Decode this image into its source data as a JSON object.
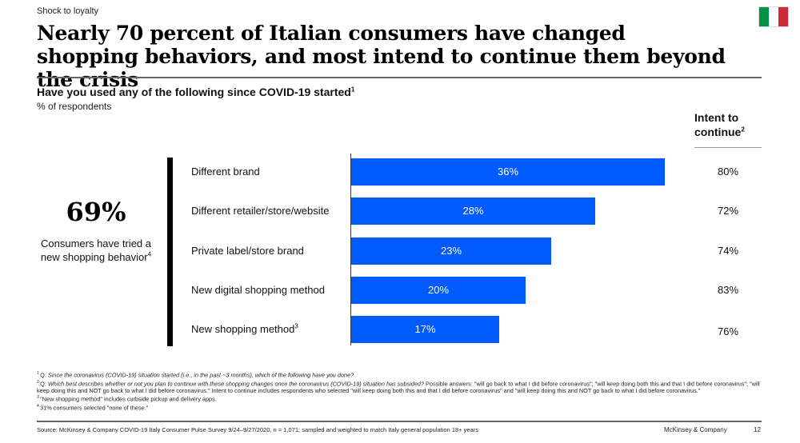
{
  "header": {
    "kicker": "Shock to loyalty",
    "title": "Nearly 70 percent of Italian consumers have changed shopping behaviors, and most intend to continue them beyond the crisis",
    "flag_icon": "italy-flag-icon",
    "flag_colors": [
      "#009246",
      "#ffffff",
      "#ce2b37"
    ]
  },
  "summary": {
    "big_number": "69%",
    "caption": "Consumers have tried a new shopping behavior",
    "caption_footnote": "4"
  },
  "intent": {
    "heading_line1": "Intent to",
    "heading_line2": "continue",
    "heading_footnote": "2"
  },
  "chart_data": {
    "type": "bar",
    "orientation": "horizontal",
    "title": "Have you used any of the following since COVID-19 started",
    "title_footnote": "1",
    "subtitle": "% of respondents",
    "categories": [
      "Different brand",
      "Different retailer/store/website",
      "Private label/store brand",
      "New digital shopping method",
      "New shopping method"
    ],
    "category_footnotes": [
      "",
      "",
      "",
      "",
      "3"
    ],
    "values": [
      36,
      28,
      23,
      20,
      17
    ],
    "value_labels": [
      "36%",
      "28%",
      "23%",
      "20%",
      "17%"
    ],
    "intent_to_continue": [
      80,
      72,
      74,
      83,
      76
    ],
    "intent_labels": [
      "80%",
      "72%",
      "74%",
      "83%",
      "76%"
    ],
    "bar_color": "#005bff",
    "xlim": [
      0,
      36
    ],
    "grid": false,
    "legend": "none"
  },
  "footnotes": [
    {
      "num": "1",
      "prefix": "Q: ",
      "italic": "Since the coronavirus (COVID-19) situation started (i.e., in the past ~3 months), which of the following have you done?",
      "text": ""
    },
    {
      "num": "2",
      "prefix": "Q: ",
      "italic": "Which best describes whether or not you plan to continue with these shopping changes once the coronavirus (COVID-19) situation has subsided?",
      "text": " Possible answers: \"will go back to what I did before coronavirus\"; \"will keep doing both this and that I did before coronavirus\"; \"will keep doing this and NOT go back to what I did before coronavirus.\" Intent to continue includes respondents who selected \"will keep doing both this and that I did before coronavirus\" and \"will keep doing this and NOT go back to what I did before coronavirus.\""
    },
    {
      "num": "3",
      "prefix": "",
      "italic": "",
      "text": "\"New shopping method\" includes curbside pickup and delivery apps."
    },
    {
      "num": "4",
      "prefix": "",
      "italic": "",
      "text": "31% consumers selected \"none of these.\""
    }
  ],
  "footer": {
    "source": "Source: McKinsey & Company COVID-19 Italy Consumer Pulse Survey 9/24–9/27/2020, n = 1,071; sampled and weighted to match Italy general population 18+ years",
    "brand": "McKinsey & Company",
    "page_number": "12"
  }
}
